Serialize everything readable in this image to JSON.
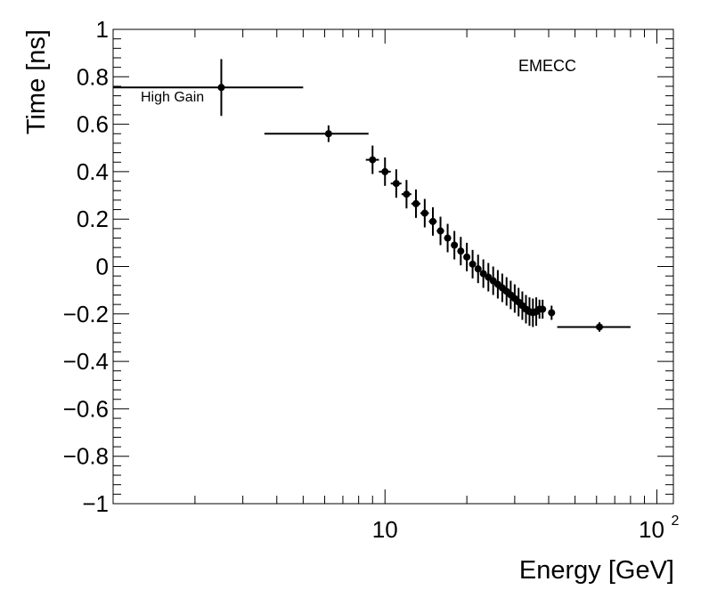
{
  "chart_data": {
    "type": "scatter",
    "xlabel": "Energy [GeV]",
    "ylabel": "Time [ns]",
    "xscale": "log",
    "xlim": [
      1.0,
      115
    ],
    "ylim": [
      -1,
      1
    ],
    "grid": false,
    "annotations": [
      "EMECC",
      "High Gain"
    ],
    "xticks": [
      {
        "value": 10,
        "label": "10"
      },
      {
        "value": 100,
        "label": "10",
        "exp": "2"
      }
    ],
    "yticks": [
      {
        "value": 1,
        "label": "1"
      },
      {
        "value": 0.8,
        "label": "0.8"
      },
      {
        "value": 0.6,
        "label": "0.6"
      },
      {
        "value": 0.4,
        "label": "0.4"
      },
      {
        "value": 0.2,
        "label": "0.2"
      },
      {
        "value": 0,
        "label": "0"
      },
      {
        "value": -0.2,
        "label": "−0.2"
      },
      {
        "value": -0.4,
        "label": "−0.4"
      },
      {
        "value": -0.6,
        "label": "−0.6"
      },
      {
        "value": -0.8,
        "label": "−0.8"
      },
      {
        "value": -1,
        "label": "−1"
      }
    ],
    "points": [
      {
        "x": 2.5,
        "y": 0.755,
        "xlo": 1.0,
        "xhi": 5.0,
        "yerr": 0.12
      },
      {
        "x": 6.2,
        "y": 0.56,
        "xlo": 3.6,
        "xhi": 8.7,
        "yerr": 0.035
      },
      {
        "x": 9.0,
        "y": 0.45,
        "xlo": 8.5,
        "xhi": 9.5,
        "yerr": 0.06
      },
      {
        "x": 10.0,
        "y": 0.4,
        "xlo": 9.5,
        "xhi": 10.5,
        "yerr": 0.06
      },
      {
        "x": 11.0,
        "y": 0.35,
        "xlo": 10.5,
        "xhi": 11.5,
        "yerr": 0.06
      },
      {
        "x": 12.0,
        "y": 0.305,
        "xlo": 11.5,
        "xhi": 12.5,
        "yerr": 0.06
      },
      {
        "x": 13.0,
        "y": 0.265,
        "xlo": 12.5,
        "xhi": 13.5,
        "yerr": 0.06
      },
      {
        "x": 14.0,
        "y": 0.225,
        "xlo": 13.5,
        "xhi": 14.5,
        "yerr": 0.06
      },
      {
        "x": 15.0,
        "y": 0.19,
        "xlo": 14.5,
        "xhi": 15.5,
        "yerr": 0.06
      },
      {
        "x": 16.0,
        "y": 0.15,
        "xlo": 15.5,
        "xhi": 16.5,
        "yerr": 0.06
      },
      {
        "x": 17.0,
        "y": 0.12,
        "xlo": 16.5,
        "xhi": 17.5,
        "yerr": 0.06
      },
      {
        "x": 18.0,
        "y": 0.09,
        "xlo": 17.5,
        "xhi": 18.5,
        "yerr": 0.06
      },
      {
        "x": 19.0,
        "y": 0.065,
        "xlo": 18.5,
        "xhi": 19.5,
        "yerr": 0.06
      },
      {
        "x": 20.0,
        "y": 0.04,
        "xlo": 19.5,
        "xhi": 20.5,
        "yerr": 0.06
      },
      {
        "x": 21.0,
        "y": 0.01,
        "xlo": 20.5,
        "xhi": 21.5,
        "yerr": 0.06
      },
      {
        "x": 22.0,
        "y": -0.01,
        "xlo": 21.5,
        "xhi": 22.5,
        "yerr": 0.06
      },
      {
        "x": 23.0,
        "y": -0.03,
        "xlo": 22.5,
        "xhi": 23.5,
        "yerr": 0.06
      },
      {
        "x": 24.0,
        "y": -0.045,
        "xlo": 23.5,
        "xhi": 24.5,
        "yerr": 0.06
      },
      {
        "x": 25.0,
        "y": -0.06,
        "xlo": 24.5,
        "xhi": 25.5,
        "yerr": 0.06
      },
      {
        "x": 26.0,
        "y": -0.075,
        "xlo": 25.5,
        "xhi": 26.5,
        "yerr": 0.06
      },
      {
        "x": 27.0,
        "y": -0.09,
        "xlo": 26.5,
        "xhi": 27.5,
        "yerr": 0.06
      },
      {
        "x": 28.0,
        "y": -0.105,
        "xlo": 27.5,
        "xhi": 28.5,
        "yerr": 0.06
      },
      {
        "x": 29.0,
        "y": -0.12,
        "xlo": 28.5,
        "xhi": 29.5,
        "yerr": 0.06
      },
      {
        "x": 30.0,
        "y": -0.135,
        "xlo": 29.5,
        "xhi": 30.5,
        "yerr": 0.06
      },
      {
        "x": 31.0,
        "y": -0.15,
        "xlo": 30.5,
        "xhi": 31.5,
        "yerr": 0.06
      },
      {
        "x": 32.0,
        "y": -0.165,
        "xlo": 31.5,
        "xhi": 32.5,
        "yerr": 0.06
      },
      {
        "x": 33.0,
        "y": -0.18,
        "xlo": 32.5,
        "xhi": 33.5,
        "yerr": 0.06
      },
      {
        "x": 34.0,
        "y": -0.19,
        "xlo": 33.5,
        "xhi": 34.5,
        "yerr": 0.06
      },
      {
        "x": 35.0,
        "y": -0.195,
        "xlo": 34.5,
        "xhi": 35.5,
        "yerr": 0.06
      },
      {
        "x": 36.0,
        "y": -0.19,
        "xlo": 35.5,
        "xhi": 36.5,
        "yerr": 0.06
      },
      {
        "x": 37.0,
        "y": -0.18,
        "xlo": 36.5,
        "xhi": 37.5,
        "yerr": 0.04
      },
      {
        "x": 38.0,
        "y": -0.18,
        "xlo": 37.5,
        "xhi": 38.5,
        "yerr": 0.04
      },
      {
        "x": 41.0,
        "y": -0.195,
        "xlo": 40.5,
        "xhi": 41.5,
        "yerr": 0.03
      },
      {
        "x": 61.5,
        "y": -0.255,
        "xlo": 43.0,
        "xhi": 80.0,
        "yerr": 0.02
      }
    ]
  }
}
